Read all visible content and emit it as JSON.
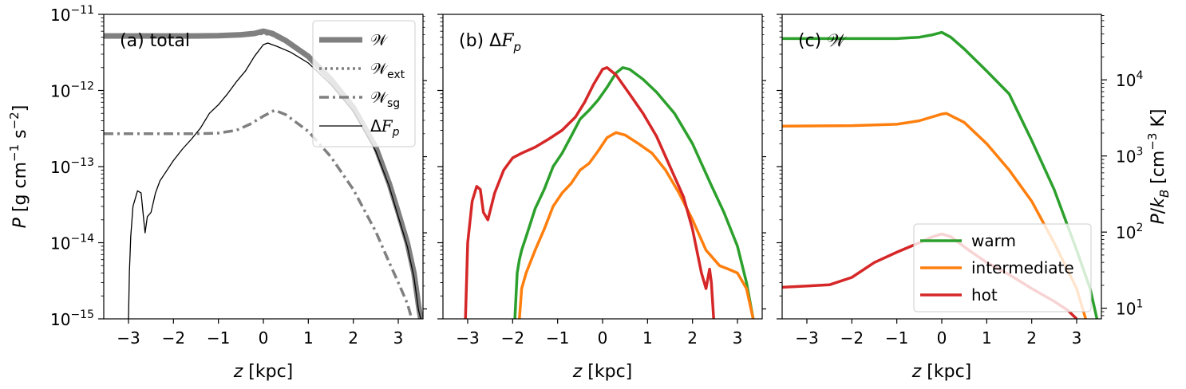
{
  "chart_data": [
    {
      "type": "line",
      "panel_label": "(a) total",
      "xlabel": "z [kpc]",
      "ylabel": "P [g cm^-1 s^-2]",
      "x_scale": "linear",
      "y_scale": "log",
      "xlim": [
        -3.55,
        3.55
      ],
      "ylim": [
        1e-15,
        1e-11
      ],
      "xticks": [
        "−3",
        "−2",
        "−1",
        "0",
        "1",
        "2",
        "3"
      ],
      "yticks": [
        "10^-15",
        "10^-14",
        "10^-13",
        "10^-12",
        "10^-11"
      ],
      "legend_loc": "top-right",
      "series": [
        {
          "name": "𝒲",
          "color": "#808080",
          "style": "solid",
          "width": "thick",
          "points": [
            [
              -3.55,
              5.2e-12
            ],
            [
              -2.5,
              5.2e-12
            ],
            [
              -1.5,
              5.2e-12
            ],
            [
              -1.0,
              5.25e-12
            ],
            [
              -0.5,
              5.4e-12
            ],
            [
              -0.2,
              5.6e-12
            ],
            [
              0.0,
              6e-12
            ],
            [
              0.2,
              5.6e-12
            ],
            [
              0.5,
              4.5e-12
            ],
            [
              1.0,
              2.8e-12
            ],
            [
              1.5,
              1.4e-12
            ],
            [
              2.0,
              6e-13
            ],
            [
              2.5,
              1.8e-13
            ],
            [
              2.8,
              6e-14
            ],
            [
              3.0,
              2.5e-14
            ],
            [
              3.2,
              1e-14
            ],
            [
              3.35,
              4e-15
            ],
            [
              3.45,
              1.5e-15
            ],
            [
              3.5,
              1e-15
            ]
          ]
        },
        {
          "name": "𝒲ext",
          "color": "#808080",
          "style": "dotted",
          "width": "medium",
          "points": [
            [
              -3.55,
              5e-12
            ],
            [
              -2.5,
              5e-12
            ],
            [
              -1.5,
              5e-12
            ],
            [
              -1.0,
              5.05e-12
            ],
            [
              -0.5,
              5.2e-12
            ],
            [
              0.0,
              5.6e-12
            ],
            [
              0.2,
              5.3e-12
            ],
            [
              0.5,
              4.3e-12
            ],
            [
              1.0,
              2.7e-12
            ],
            [
              1.5,
              1.35e-12
            ],
            [
              2.0,
              5.8e-13
            ],
            [
              2.5,
              1.7e-13
            ],
            [
              2.8,
              5.8e-14
            ],
            [
              3.0,
              2.4e-14
            ],
            [
              3.2,
              9.5e-15
            ],
            [
              3.35,
              3.8e-15
            ],
            [
              3.45,
              1.4e-15
            ],
            [
              3.5,
              1e-15
            ]
          ]
        },
        {
          "name": "𝒲sg",
          "color": "#808080",
          "style": "dashdot",
          "width": "medium",
          "points": [
            [
              -3.55,
              2.7e-13
            ],
            [
              -2.5,
              2.7e-13
            ],
            [
              -1.5,
              2.7e-13
            ],
            [
              -1.0,
              2.75e-13
            ],
            [
              -0.6,
              3e-13
            ],
            [
              -0.3,
              3.6e-13
            ],
            [
              0.0,
              4.6e-13
            ],
            [
              0.25,
              5.5e-13
            ],
            [
              0.5,
              4.8e-13
            ],
            [
              1.0,
              2.9e-13
            ],
            [
              1.5,
              1.35e-13
            ],
            [
              2.0,
              5e-14
            ],
            [
              2.5,
              1.4e-14
            ],
            [
              2.8,
              5.5e-15
            ],
            [
              3.0,
              3e-15
            ],
            [
              3.2,
              1.6e-15
            ],
            [
              3.3,
              1e-15
            ]
          ]
        },
        {
          "name": "ΔFp",
          "color": "#000000",
          "style": "solid",
          "width": "thin",
          "points": [
            [
              -3.0,
              1e-15
            ],
            [
              -2.98,
              4e-15
            ],
            [
              -2.95,
              1.2e-14
            ],
            [
              -2.9,
              3e-14
            ],
            [
              -2.8,
              4.8e-14
            ],
            [
              -2.72,
              4.5e-14
            ],
            [
              -2.66,
              2e-14
            ],
            [
              -2.63,
              1.35e-14
            ],
            [
              -2.58,
              2.2e-14
            ],
            [
              -2.5,
              2.5e-14
            ],
            [
              -2.4,
              4.5e-14
            ],
            [
              -2.3,
              6.5e-14
            ],
            [
              -2.2,
              8e-14
            ],
            [
              -2.0,
              1.2e-13
            ],
            [
              -1.8,
              1.7e-13
            ],
            [
              -1.6,
              2.3e-13
            ],
            [
              -1.4,
              3.2e-13
            ],
            [
              -1.2,
              5e-13
            ],
            [
              -1.0,
              6.5e-13
            ],
            [
              -0.8,
              9e-13
            ],
            [
              -0.6,
              1.3e-12
            ],
            [
              -0.4,
              1.8e-12
            ],
            [
              -0.2,
              2.8e-12
            ],
            [
              0.0,
              4e-12
            ],
            [
              0.1,
              4.2e-12
            ],
            [
              0.3,
              3.8e-12
            ],
            [
              0.6,
              3.2e-12
            ],
            [
              1.0,
              2.3e-12
            ],
            [
              1.5,
              1.2e-12
            ],
            [
              2.0,
              5.3e-13
            ],
            [
              2.5,
              1.6e-13
            ],
            [
              2.8,
              5.5e-14
            ],
            [
              3.0,
              2.2e-14
            ],
            [
              3.2,
              9e-15
            ],
            [
              3.35,
              3.5e-15
            ],
            [
              3.45,
              1.3e-15
            ],
            [
              3.5,
              1e-15
            ]
          ]
        }
      ]
    },
    {
      "type": "line",
      "panel_label": "(b) ΔFp",
      "xlabel": "z [kpc]",
      "x_scale": "linear",
      "y_scale": "log",
      "xlim": [
        -3.55,
        3.55
      ],
      "ylim": [
        1e-15,
        1e-11
      ],
      "xticks": [
        "−3",
        "−2",
        "−1",
        "0",
        "1",
        "2",
        "3"
      ],
      "series": [
        {
          "name": "warm",
          "color": "#2ca02c",
          "style": "solid",
          "width": "medium",
          "points": [
            [
              -1.95,
              1e-15
            ],
            [
              -1.9,
              4e-15
            ],
            [
              -1.85,
              6e-15
            ],
            [
              -1.8,
              8e-15
            ],
            [
              -1.7,
              1.2e-14
            ],
            [
              -1.5,
              2.8e-14
            ],
            [
              -1.3,
              5e-14
            ],
            [
              -1.1,
              1e-13
            ],
            [
              -0.9,
              1.5e-13
            ],
            [
              -0.7,
              2.5e-13
            ],
            [
              -0.5,
              4.2e-13
            ],
            [
              -0.3,
              5.5e-13
            ],
            [
              -0.1,
              7.5e-13
            ],
            [
              0.1,
              1.1e-12
            ],
            [
              0.3,
              1.7e-12
            ],
            [
              0.45,
              2e-12
            ],
            [
              0.6,
              1.9e-12
            ],
            [
              0.9,
              1.4e-12
            ],
            [
              1.2,
              9.5e-13
            ],
            [
              1.6,
              5e-13
            ],
            [
              2.0,
              2e-13
            ],
            [
              2.4,
              6e-14
            ],
            [
              2.7,
              2.5e-14
            ],
            [
              3.0,
              9e-15
            ],
            [
              3.2,
              3e-15
            ],
            [
              3.35,
              1e-15
            ]
          ]
        },
        {
          "name": "intermediate",
          "color": "#ff7f0e",
          "style": "solid",
          "width": "medium",
          "points": [
            [
              -1.85,
              1e-15
            ],
            [
              -1.8,
              2.5e-15
            ],
            [
              -1.7,
              4e-15
            ],
            [
              -1.5,
              8e-15
            ],
            [
              -1.3,
              1.5e-14
            ],
            [
              -1.1,
              3e-14
            ],
            [
              -0.9,
              4.5e-14
            ],
            [
              -0.7,
              6e-14
            ],
            [
              -0.5,
              9e-14
            ],
            [
              -0.3,
              1.1e-13
            ],
            [
              -0.1,
              1.6e-13
            ],
            [
              0.1,
              2.4e-13
            ],
            [
              0.3,
              2.8e-13
            ],
            [
              0.5,
              2.6e-13
            ],
            [
              0.8,
              2e-13
            ],
            [
              1.1,
              1.5e-13
            ],
            [
              1.4,
              9e-14
            ],
            [
              1.7,
              4.5e-14
            ],
            [
              2.0,
              2e-14
            ],
            [
              2.3,
              8e-15
            ],
            [
              2.6,
              5e-15
            ],
            [
              2.8,
              4.5e-15
            ],
            [
              3.0,
              4e-15
            ],
            [
              3.2,
              2.5e-15
            ],
            [
              3.35,
              1e-15
            ]
          ]
        },
        {
          "name": "hot",
          "color": "#d62728",
          "style": "solid",
          "width": "medium",
          "points": [
            [
              -3.05,
              1e-15
            ],
            [
              -3.0,
              1e-14
            ],
            [
              -2.9,
              3.5e-14
            ],
            [
              -2.8,
              5.5e-14
            ],
            [
              -2.72,
              5e-14
            ],
            [
              -2.65,
              2.5e-14
            ],
            [
              -2.55,
              2e-14
            ],
            [
              -2.4,
              4.5e-14
            ],
            [
              -2.2,
              9e-14
            ],
            [
              -2.0,
              1.3e-13
            ],
            [
              -1.8,
              1.5e-13
            ],
            [
              -1.5,
              1.8e-13
            ],
            [
              -1.2,
              2.3e-13
            ],
            [
              -0.9,
              3e-13
            ],
            [
              -0.6,
              4.5e-13
            ],
            [
              -0.4,
              7e-13
            ],
            [
              -0.2,
              1.2e-12
            ],
            [
              0.0,
              1.9e-12
            ],
            [
              0.1,
              2e-12
            ],
            [
              0.3,
              1.6e-12
            ],
            [
              0.6,
              9e-13
            ],
            [
              0.9,
              5e-13
            ],
            [
              1.2,
              2.5e-13
            ],
            [
              1.5,
              1e-13
            ],
            [
              1.8,
              4e-14
            ],
            [
              2.0,
              1.5e-14
            ],
            [
              2.2,
              4e-15
            ],
            [
              2.3,
              2.5e-15
            ],
            [
              2.38,
              4.5e-15
            ],
            [
              2.42,
              3e-15
            ],
            [
              2.47,
              1e-15
            ]
          ]
        }
      ]
    },
    {
      "type": "line",
      "panel_label": "(c) 𝒲",
      "xlabel": "z [kpc]",
      "ylabel_right": "P/k_B [cm^-3 K]",
      "x_scale": "linear",
      "y_scale": "log",
      "xlim": [
        -3.55,
        3.55
      ],
      "ylim": [
        1e-15,
        1e-11
      ],
      "right_ylim": [
        7.25,
        72500
      ],
      "xticks": [
        "−3",
        "−2",
        "−1",
        "0",
        "1",
        "2",
        "3"
      ],
      "right_yticks": [
        "10^1",
        "10^2",
        "10^3",
        "10^4"
      ],
      "legend_loc": "lower-right",
      "series": [
        {
          "name": "warm",
          "color": "#2ca02c",
          "style": "solid",
          "width": "medium",
          "points": [
            [
              -3.55,
              4.8e-12
            ],
            [
              -2.0,
              4.8e-12
            ],
            [
              -1.0,
              4.8e-12
            ],
            [
              -0.5,
              5e-12
            ],
            [
              -0.2,
              5.4e-12
            ],
            [
              0.0,
              5.8e-12
            ],
            [
              0.2,
              5e-12
            ],
            [
              0.5,
              3.5e-12
            ],
            [
              1.0,
              1.8e-12
            ],
            [
              1.5,
              9e-13
            ],
            [
              2.0,
              2.2e-13
            ],
            [
              2.5,
              5e-14
            ],
            [
              3.0,
              8e-15
            ],
            [
              3.3,
              2.5e-15
            ],
            [
              3.45,
              1e-15
            ]
          ]
        },
        {
          "name": "intermediate",
          "color": "#ff7f0e",
          "style": "solid",
          "width": "medium",
          "points": [
            [
              -3.55,
              3.4e-13
            ],
            [
              -2.0,
              3.45e-13
            ],
            [
              -1.0,
              3.6e-13
            ],
            [
              -0.5,
              4e-13
            ],
            [
              0.0,
              4.9e-13
            ],
            [
              0.1,
              5e-13
            ],
            [
              0.5,
              3.8e-13
            ],
            [
              1.0,
              2e-13
            ],
            [
              1.5,
              9e-14
            ],
            [
              2.0,
              3.5e-14
            ],
            [
              2.5,
              1e-14
            ],
            [
              3.0,
              2.5e-15
            ],
            [
              3.2,
              1e-15
            ]
          ]
        },
        {
          "name": "hot",
          "color": "#d62728",
          "style": "solid",
          "width": "medium",
          "points": [
            [
              -3.55,
              2.6e-15
            ],
            [
              -2.5,
              2.8e-15
            ],
            [
              -2.0,
              3.5e-15
            ],
            [
              -1.5,
              5.5e-15
            ],
            [
              -1.0,
              7.5e-15
            ],
            [
              -0.5,
              1e-14
            ],
            [
              -0.2,
              1.2e-14
            ],
            [
              0.0,
              1.3e-14
            ],
            [
              0.2,
              1.2e-14
            ],
            [
              0.6,
              8e-15
            ],
            [
              1.0,
              5.5e-15
            ],
            [
              1.5,
              3.8e-15
            ],
            [
              2.0,
              2.5e-15
            ],
            [
              2.5,
              1.7e-15
            ],
            [
              2.8,
              1.3e-15
            ],
            [
              3.0,
              1e-15
            ]
          ]
        }
      ]
    }
  ]
}
